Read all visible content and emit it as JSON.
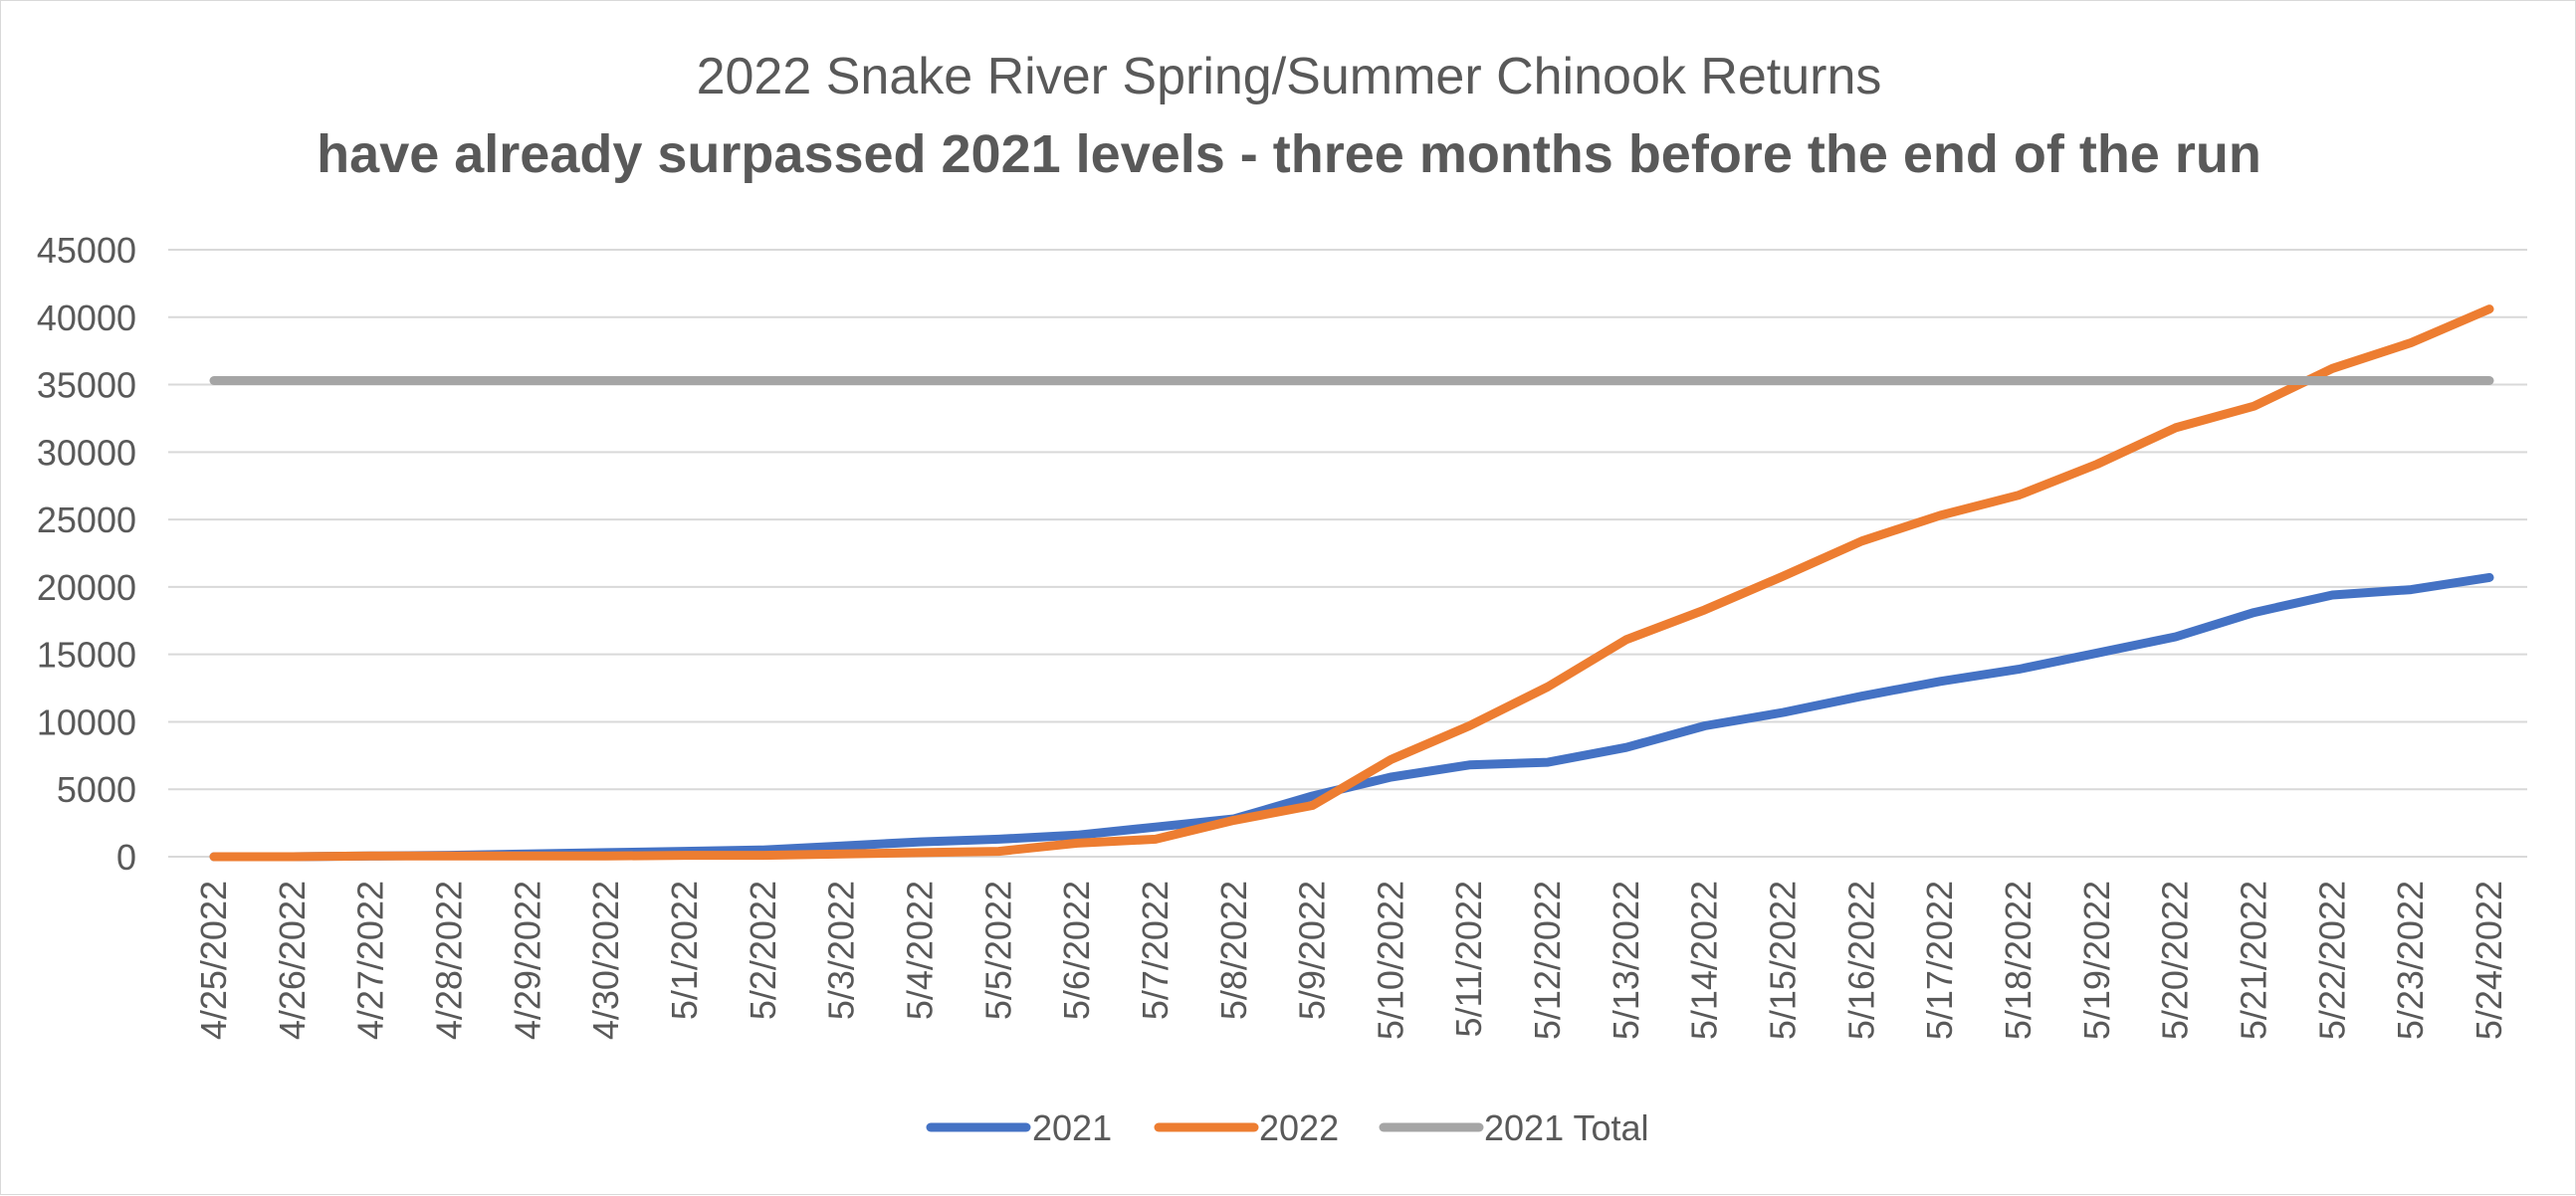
{
  "chart_data": {
    "type": "line",
    "title": "2022 Snake River Spring/Summer Chinook Returns",
    "subtitle": "have already surpassed 2021 levels - three months before the end of the run",
    "xlabel": "",
    "ylabel": "",
    "ylim": [
      0,
      45000
    ],
    "y_ticks": [
      "0",
      "5000",
      "10000",
      "15000",
      "20000",
      "25000",
      "30000",
      "35000",
      "40000",
      "45000"
    ],
    "grid": true,
    "legend_position": "bottom",
    "categories": [
      "4/25/2022",
      "4/26/2022",
      "4/27/2022",
      "4/28/2022",
      "4/29/2022",
      "4/30/2022",
      "5/1/2022",
      "5/2/2022",
      "5/3/2022",
      "5/4/2022",
      "5/5/2022",
      "5/6/2022",
      "5/7/2022",
      "5/8/2022",
      "5/9/2022",
      "5/10/2022",
      "5/11/2022",
      "5/12/2022",
      "5/13/2022",
      "5/14/2022",
      "5/15/2022",
      "5/16/2022",
      "5/17/2022",
      "5/18/2022",
      "5/19/2022",
      "5/20/2022",
      "5/21/2022",
      "5/22/2022",
      "5/23/2022",
      "5/24/2022"
    ],
    "series": [
      {
        "name": "2021",
        "color": "#4472c4",
        "values": [
          0,
          0,
          50,
          100,
          200,
          300,
          400,
          500,
          800,
          1100,
          1300,
          1600,
          2200,
          2800,
          4500,
          5900,
          6800,
          7000,
          8100,
          9700,
          10700,
          11900,
          13000,
          13900,
          15100,
          16300,
          18100,
          19400,
          19800,
          20700
        ]
      },
      {
        "name": "2022",
        "color": "#ed7d31",
        "values": [
          0,
          0,
          50,
          50,
          50,
          50,
          100,
          100,
          200,
          300,
          400,
          1000,
          1300,
          2700,
          3800,
          7200,
          9700,
          12600,
          16100,
          18300,
          20800,
          23400,
          25300,
          26800,
          29100,
          31800,
          33400,
          36200,
          38100,
          40600
        ]
      },
      {
        "name": "2021 Total",
        "color": "#a5a5a5",
        "values": [
          35300,
          35300,
          35300,
          35300,
          35300,
          35300,
          35300,
          35300,
          35300,
          35300,
          35300,
          35300,
          35300,
          35300,
          35300,
          35300,
          35300,
          35300,
          35300,
          35300,
          35300,
          35300,
          35300,
          35300,
          35300,
          35300,
          35300,
          35300,
          35300,
          35300
        ]
      }
    ]
  }
}
